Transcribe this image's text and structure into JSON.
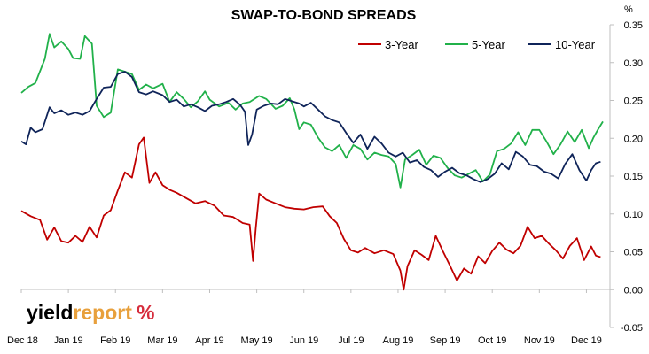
{
  "chart_data": {
    "type": "line",
    "title": "SWAP-TO-BOND SPREADS",
    "y_unit_label": "%",
    "ylim": [
      -0.05,
      0.35
    ],
    "y_ticks": [
      "0.35",
      "0.30",
      "0.25",
      "0.20",
      "0.15",
      "0.10",
      "0.05",
      "0.00",
      "-0.05"
    ],
    "x_tick_labels": [
      "Dec 18",
      "Jan 19",
      "Feb 19",
      "Mar 19",
      "Apr 19",
      "May 19",
      "Jun 19",
      "Jul 19",
      "Aug 19",
      "Sep 19",
      "Oct 19",
      "Nov 19",
      "Dec 19"
    ],
    "x_range_months": [
      0,
      12.5
    ],
    "grid": false,
    "legend_position": "top-right",
    "series": [
      {
        "name": "3-Year",
        "color": "#c00000",
        "points": [
          [
            0.0,
            0.104
          ],
          [
            0.2,
            0.097
          ],
          [
            0.4,
            0.092
          ],
          [
            0.55,
            0.066
          ],
          [
            0.7,
            0.082
          ],
          [
            0.85,
            0.064
          ],
          [
            1.0,
            0.062
          ],
          [
            1.15,
            0.071
          ],
          [
            1.3,
            0.063
          ],
          [
            1.45,
            0.083
          ],
          [
            1.6,
            0.069
          ],
          [
            1.75,
            0.098
          ],
          [
            1.9,
            0.105
          ],
          [
            2.05,
            0.131
          ],
          [
            2.2,
            0.155
          ],
          [
            2.35,
            0.148
          ],
          [
            2.5,
            0.192
          ],
          [
            2.6,
            0.201
          ],
          [
            2.72,
            0.141
          ],
          [
            2.85,
            0.155
          ],
          [
            3.0,
            0.138
          ],
          [
            3.15,
            0.132
          ],
          [
            3.3,
            0.128
          ],
          [
            3.5,
            0.121
          ],
          [
            3.7,
            0.114
          ],
          [
            3.9,
            0.117
          ],
          [
            4.1,
            0.111
          ],
          [
            4.3,
            0.098
          ],
          [
            4.5,
            0.096
          ],
          [
            4.7,
            0.088
          ],
          [
            4.85,
            0.086
          ],
          [
            4.92,
            0.038
          ],
          [
            4.98,
            0.081
          ],
          [
            5.05,
            0.127
          ],
          [
            5.2,
            0.119
          ],
          [
            5.4,
            0.114
          ],
          [
            5.6,
            0.109
          ],
          [
            5.8,
            0.107
          ],
          [
            6.0,
            0.106
          ],
          [
            6.2,
            0.109
          ],
          [
            6.4,
            0.11
          ],
          [
            6.55,
            0.097
          ],
          [
            6.7,
            0.088
          ],
          [
            6.85,
            0.067
          ],
          [
            7.0,
            0.052
          ],
          [
            7.15,
            0.049
          ],
          [
            7.3,
            0.055
          ],
          [
            7.5,
            0.048
          ],
          [
            7.7,
            0.052
          ],
          [
            7.9,
            0.047
          ],
          [
            8.05,
            0.025
          ],
          [
            8.12,
            0.0
          ],
          [
            8.2,
            0.031
          ],
          [
            8.35,
            0.052
          ],
          [
            8.5,
            0.046
          ],
          [
            8.65,
            0.039
          ],
          [
            8.8,
            0.071
          ],
          [
            8.95,
            0.051
          ],
          [
            9.1,
            0.032
          ],
          [
            9.25,
            0.012
          ],
          [
            9.4,
            0.028
          ],
          [
            9.55,
            0.021
          ],
          [
            9.7,
            0.044
          ],
          [
            9.85,
            0.035
          ],
          [
            10.0,
            0.051
          ],
          [
            10.15,
            0.062
          ],
          [
            10.3,
            0.053
          ],
          [
            10.45,
            0.048
          ],
          [
            10.6,
            0.058
          ],
          [
            10.75,
            0.083
          ],
          [
            10.9,
            0.068
          ],
          [
            11.05,
            0.071
          ],
          [
            11.2,
            0.061
          ],
          [
            11.35,
            0.052
          ],
          [
            11.5,
            0.041
          ],
          [
            11.65,
            0.058
          ],
          [
            11.8,
            0.068
          ],
          [
            11.95,
            0.039
          ],
          [
            12.1,
            0.057
          ],
          [
            12.2,
            0.045
          ],
          [
            12.3,
            0.043
          ]
        ]
      },
      {
        "name": "5-Year",
        "color": "#21b14a",
        "points": [
          [
            0.0,
            0.26
          ],
          [
            0.15,
            0.268
          ],
          [
            0.3,
            0.273
          ],
          [
            0.5,
            0.305
          ],
          [
            0.6,
            0.338
          ],
          [
            0.7,
            0.32
          ],
          [
            0.85,
            0.328
          ],
          [
            1.0,
            0.318
          ],
          [
            1.1,
            0.306
          ],
          [
            1.25,
            0.305
          ],
          [
            1.35,
            0.335
          ],
          [
            1.5,
            0.325
          ],
          [
            1.6,
            0.243
          ],
          [
            1.75,
            0.228
          ],
          [
            1.9,
            0.234
          ],
          [
            2.05,
            0.291
          ],
          [
            2.2,
            0.288
          ],
          [
            2.35,
            0.285
          ],
          [
            2.5,
            0.264
          ],
          [
            2.65,
            0.271
          ],
          [
            2.8,
            0.266
          ],
          [
            3.0,
            0.272
          ],
          [
            3.15,
            0.248
          ],
          [
            3.3,
            0.261
          ],
          [
            3.45,
            0.252
          ],
          [
            3.6,
            0.241
          ],
          [
            3.75,
            0.249
          ],
          [
            3.9,
            0.262
          ],
          [
            4.0,
            0.251
          ],
          [
            4.2,
            0.242
          ],
          [
            4.4,
            0.247
          ],
          [
            4.55,
            0.238
          ],
          [
            4.7,
            0.246
          ],
          [
            4.85,
            0.248
          ],
          [
            5.05,
            0.256
          ],
          [
            5.2,
            0.252
          ],
          [
            5.4,
            0.239
          ],
          [
            5.55,
            0.243
          ],
          [
            5.7,
            0.253
          ],
          [
            5.8,
            0.238
          ],
          [
            5.9,
            0.212
          ],
          [
            6.0,
            0.221
          ],
          [
            6.15,
            0.218
          ],
          [
            6.3,
            0.201
          ],
          [
            6.45,
            0.188
          ],
          [
            6.6,
            0.183
          ],
          [
            6.75,
            0.191
          ],
          [
            6.9,
            0.174
          ],
          [
            7.05,
            0.191
          ],
          [
            7.2,
            0.186
          ],
          [
            7.35,
            0.172
          ],
          [
            7.5,
            0.181
          ],
          [
            7.65,
            0.178
          ],
          [
            7.8,
            0.176
          ],
          [
            7.95,
            0.166
          ],
          [
            8.05,
            0.135
          ],
          [
            8.15,
            0.172
          ],
          [
            8.3,
            0.178
          ],
          [
            8.45,
            0.185
          ],
          [
            8.6,
            0.165
          ],
          [
            8.75,
            0.177
          ],
          [
            8.9,
            0.174
          ],
          [
            9.05,
            0.161
          ],
          [
            9.2,
            0.151
          ],
          [
            9.35,
            0.148
          ],
          [
            9.5,
            0.153
          ],
          [
            9.65,
            0.158
          ],
          [
            9.8,
            0.143
          ],
          [
            9.95,
            0.152
          ],
          [
            10.1,
            0.183
          ],
          [
            10.25,
            0.186
          ],
          [
            10.4,
            0.193
          ],
          [
            10.55,
            0.208
          ],
          [
            10.7,
            0.191
          ],
          [
            10.85,
            0.211
          ],
          [
            11.0,
            0.211
          ],
          [
            11.15,
            0.196
          ],
          [
            11.3,
            0.179
          ],
          [
            11.45,
            0.192
          ],
          [
            11.6,
            0.209
          ],
          [
            11.75,
            0.195
          ],
          [
            11.9,
            0.211
          ],
          [
            12.05,
            0.187
          ],
          [
            12.15,
            0.201
          ],
          [
            12.25,
            0.212
          ],
          [
            12.35,
            0.222
          ]
        ]
      },
      {
        "name": "10-Year",
        "color": "#0f2459",
        "points": [
          [
            0.0,
            0.196
          ],
          [
            0.1,
            0.192
          ],
          [
            0.2,
            0.214
          ],
          [
            0.3,
            0.208
          ],
          [
            0.45,
            0.212
          ],
          [
            0.6,
            0.241
          ],
          [
            0.7,
            0.233
          ],
          [
            0.85,
            0.237
          ],
          [
            1.0,
            0.231
          ],
          [
            1.15,
            0.234
          ],
          [
            1.3,
            0.231
          ],
          [
            1.45,
            0.236
          ],
          [
            1.6,
            0.252
          ],
          [
            1.75,
            0.267
          ],
          [
            1.9,
            0.268
          ],
          [
            2.05,
            0.285
          ],
          [
            2.2,
            0.288
          ],
          [
            2.35,
            0.281
          ],
          [
            2.5,
            0.261
          ],
          [
            2.65,
            0.258
          ],
          [
            2.8,
            0.262
          ],
          [
            3.0,
            0.257
          ],
          [
            3.15,
            0.248
          ],
          [
            3.3,
            0.251
          ],
          [
            3.45,
            0.242
          ],
          [
            3.6,
            0.245
          ],
          [
            3.75,
            0.241
          ],
          [
            3.9,
            0.236
          ],
          [
            4.05,
            0.243
          ],
          [
            4.2,
            0.245
          ],
          [
            4.35,
            0.248
          ],
          [
            4.5,
            0.252
          ],
          [
            4.65,
            0.244
          ],
          [
            4.75,
            0.235
          ],
          [
            4.82,
            0.191
          ],
          [
            4.9,
            0.205
          ],
          [
            5.0,
            0.238
          ],
          [
            5.15,
            0.243
          ],
          [
            5.3,
            0.246
          ],
          [
            5.45,
            0.245
          ],
          [
            5.6,
            0.252
          ],
          [
            5.75,
            0.249
          ],
          [
            5.9,
            0.246
          ],
          [
            6.0,
            0.242
          ],
          [
            6.15,
            0.247
          ],
          [
            6.3,
            0.238
          ],
          [
            6.45,
            0.229
          ],
          [
            6.6,
            0.224
          ],
          [
            6.75,
            0.221
          ],
          [
            6.9,
            0.207
          ],
          [
            7.05,
            0.194
          ],
          [
            7.2,
            0.205
          ],
          [
            7.35,
            0.186
          ],
          [
            7.5,
            0.202
          ],
          [
            7.65,
            0.193
          ],
          [
            7.8,
            0.181
          ],
          [
            7.95,
            0.176
          ],
          [
            8.1,
            0.181
          ],
          [
            8.25,
            0.168
          ],
          [
            8.4,
            0.171
          ],
          [
            8.55,
            0.162
          ],
          [
            8.7,
            0.158
          ],
          [
            8.85,
            0.149
          ],
          [
            9.0,
            0.156
          ],
          [
            9.15,
            0.161
          ],
          [
            9.3,
            0.154
          ],
          [
            9.45,
            0.151
          ],
          [
            9.6,
            0.146
          ],
          [
            9.75,
            0.142
          ],
          [
            9.9,
            0.146
          ],
          [
            10.05,
            0.153
          ],
          [
            10.2,
            0.167
          ],
          [
            10.35,
            0.159
          ],
          [
            10.5,
            0.182
          ],
          [
            10.65,
            0.176
          ],
          [
            10.8,
            0.165
          ],
          [
            10.95,
            0.163
          ],
          [
            11.1,
            0.156
          ],
          [
            11.25,
            0.153
          ],
          [
            11.4,
            0.147
          ],
          [
            11.55,
            0.166
          ],
          [
            11.7,
            0.179
          ],
          [
            11.85,
            0.158
          ],
          [
            12.0,
            0.144
          ],
          [
            12.1,
            0.158
          ],
          [
            12.2,
            0.167
          ],
          [
            12.3,
            0.169
          ]
        ]
      }
    ]
  },
  "logo": {
    "word_yield": "yield",
    "word_report": "report",
    "symbol": "%",
    "color_yield": "#000000",
    "color_report": "#e8a03c",
    "color_symbol": "#d62d3d"
  }
}
